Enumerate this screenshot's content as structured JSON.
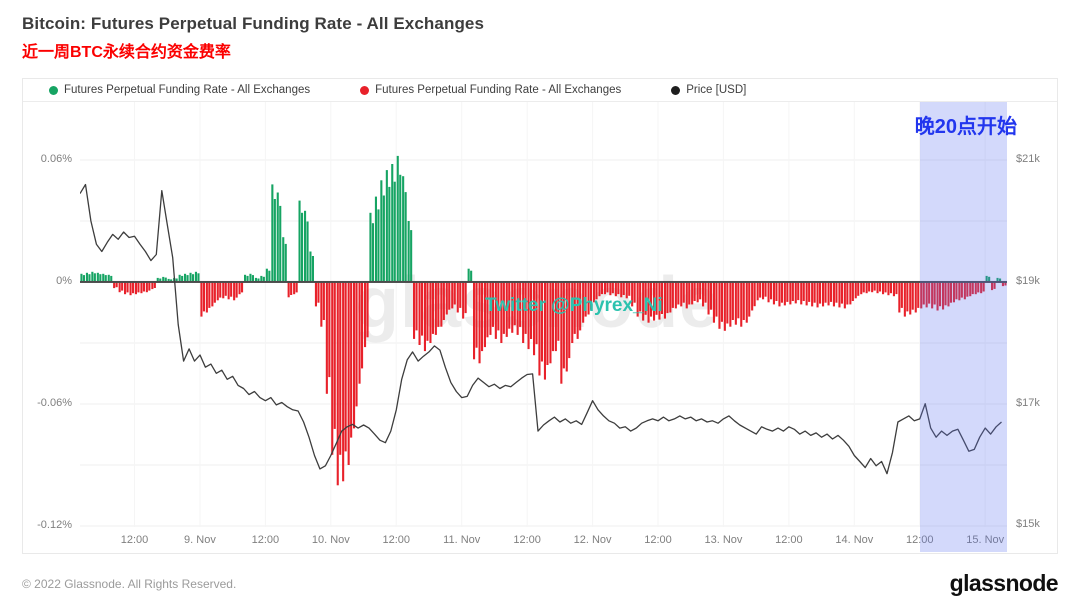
{
  "header": {
    "title": "Bitcoin: Futures Perpetual Funding Rate - All Exchanges",
    "subtitle": "近一周BTC永续合约资金费率"
  },
  "legend": [
    {
      "label": "Futures Perpetual Funding Rate - All Exchanges",
      "color": "#16a463"
    },
    {
      "label": "Futures Perpetual Funding Rate - All Exchanges",
      "color": "#e8212a"
    },
    {
      "label": "Price [USD]",
      "color": "#1e1e1e"
    }
  ],
  "watermarks": {
    "glassnode": "glassnode",
    "twitter": "Twitter @Phyrex_Ni"
  },
  "annotation": {
    "label": "晚20点开始"
  },
  "footer": {
    "copyright": "© 2022 Glassnode. All Rights Reserved.",
    "logo": "glassnode"
  },
  "chart_data": {
    "type": "bar",
    "subtype": "bar+line combo, hourly samples, hours counted from 8. Nov 00:00",
    "title": "Bitcoin: Futures Perpetual Funding Rate - All Exchanges",
    "time_range": [
      2,
      172
    ],
    "time_start_hour": 2,
    "funding_range_pct": [
      -0.1205,
      0.0885
    ],
    "price_range_kusd": [
      14.975,
      21.955
    ],
    "grid_values_pct": [
      0.06,
      0.03,
      0,
      -0.03,
      -0.06,
      -0.09,
      -0.12
    ],
    "y_left_ticks": [
      {
        "value": 0.06,
        "label": "0.06%"
      },
      {
        "value": 0,
        "label": "0%"
      },
      {
        "value": -0.06,
        "label": "-0.06%"
      },
      {
        "value": -0.12,
        "label": "-0.12%"
      }
    ],
    "y_right_ticks": [
      {
        "value": 21,
        "label": "$21k"
      },
      {
        "value": 19,
        "label": "$19k"
      },
      {
        "value": 17,
        "label": "$17k"
      },
      {
        "value": 15,
        "label": "$15k"
      }
    ],
    "x_ticks": [
      {
        "hour": 12,
        "label": "12:00"
      },
      {
        "hour": 24,
        "label": "9. Nov"
      },
      {
        "hour": 36,
        "label": "12:00"
      },
      {
        "hour": 48,
        "label": "10. Nov"
      },
      {
        "hour": 60,
        "label": "12:00"
      },
      {
        "hour": 72,
        "label": "11. Nov"
      },
      {
        "hour": 84,
        "label": "12:00"
      },
      {
        "hour": 96,
        "label": "12. Nov"
      },
      {
        "hour": 108,
        "label": "12:00"
      },
      {
        "hour": 120,
        "label": "13. Nov"
      },
      {
        "hour": 132,
        "label": "12:00"
      },
      {
        "hour": 144,
        "label": "14. Nov"
      },
      {
        "hour": 156,
        "label": "12:00"
      },
      {
        "hour": 168,
        "label": "15. Nov"
      }
    ],
    "highlight": {
      "from_hour": 156,
      "to_hour": 172,
      "label": "晚20点开始"
    },
    "series": [
      {
        "name": "Futures Perpetual Funding Rate - All Exchanges",
        "type": "bar",
        "color_positive": "#16a463",
        "color_negative": "#e8212a",
        "unit": "%"
      },
      {
        "name": "Price [USD]",
        "type": "line",
        "color": "#3d3d3d",
        "unit": "kUSD"
      }
    ],
    "funding_pct": [
      0.004,
      0.0045,
      0.005,
      0.0045,
      0.004,
      0.0035,
      -0.003,
      -0.005,
      -0.006,
      -0.0065,
      -0.006,
      -0.0055,
      -0.005,
      -0.0035,
      0.002,
      0.0025,
      0.0015,
      0.002,
      0.0035,
      0.004,
      0.0045,
      0.005,
      -0.017,
      -0.015,
      -0.012,
      -0.009,
      -0.008,
      -0.0085,
      -0.009,
      -0.006,
      0.0035,
      0.004,
      0.002,
      0.003,
      0.0065,
      0.048,
      0.044,
      0.022,
      -0.0075,
      -0.006,
      0.04,
      0.035,
      0.015,
      -0.012,
      -0.022,
      -0.055,
      -0.085,
      -0.1,
      -0.098,
      -0.09,
      -0.072,
      -0.05,
      -0.032,
      0.034,
      0.042,
      0.05,
      0.055,
      0.058,
      0.062,
      0.052,
      0.03,
      -0.028,
      -0.031,
      -0.034,
      -0.03,
      -0.026,
      -0.022,
      -0.016,
      -0.013,
      -0.015,
      -0.018,
      0.0065,
      -0.038,
      -0.04,
      -0.032,
      -0.026,
      -0.028,
      -0.03,
      -0.027,
      -0.025,
      -0.026,
      -0.03,
      -0.033,
      -0.036,
      -0.046,
      -0.048,
      -0.04,
      -0.034,
      -0.05,
      -0.044,
      -0.03,
      -0.028,
      -0.02,
      -0.016,
      -0.01,
      -0.007,
      -0.006,
      -0.0065,
      -0.007,
      -0.0075,
      -0.008,
      -0.012,
      -0.017,
      -0.019,
      -0.02,
      -0.019,
      -0.0185,
      -0.018,
      -0.015,
      -0.013,
      -0.012,
      -0.013,
      -0.011,
      -0.01,
      -0.012,
      -0.016,
      -0.02,
      -0.023,
      -0.024,
      -0.022,
      -0.021,
      -0.022,
      -0.02,
      -0.014,
      -0.009,
      -0.0085,
      -0.01,
      -0.011,
      -0.012,
      -0.0115,
      -0.011,
      -0.0105,
      -0.011,
      -0.0115,
      -0.012,
      -0.0125,
      -0.012,
      -0.0115,
      -0.012,
      -0.0125,
      -0.013,
      -0.011,
      -0.008,
      -0.006,
      -0.0055,
      -0.005,
      -0.0055,
      -0.006,
      -0.0065,
      -0.007,
      -0.015,
      -0.017,
      -0.016,
      -0.015,
      -0.013,
      -0.0125,
      -0.013,
      -0.014,
      -0.0135,
      -0.012,
      -0.01,
      -0.009,
      -0.0085,
      -0.007,
      -0.006,
      -0.0055,
      0.003,
      -0.004,
      0.002,
      -0.002
    ],
    "price_kusd": [
      20.45,
      20.6,
      20.0,
      19.62,
      19.5,
      19.65,
      19.78,
      19.7,
      19.82,
      19.73,
      19.75,
      19.62,
      19.5,
      19.35,
      19.45,
      20.5,
      19.95,
      19.4,
      18.3,
      17.7,
      17.9,
      17.7,
      17.8,
      17.6,
      17.65,
      17.5,
      17.55,
      17.4,
      17.45,
      17.3,
      17.25,
      17.15,
      17.2,
      17.1,
      17.05,
      17.1,
      16.98,
      17.02,
      16.95,
      16.9,
      16.88,
      16.7,
      16.45,
      16.15,
      15.93,
      15.98,
      16.15,
      16.35,
      16.55,
      16.62,
      16.66,
      16.6,
      16.65,
      16.6,
      16.5,
      16.4,
      16.36,
      16.55,
      16.9,
      17.4,
      17.72,
      17.85,
      17.7,
      17.78,
      17.85,
      17.95,
      17.88,
      17.6,
      17.35,
      17.2,
      17.1,
      17.12,
      17.3,
      17.42,
      17.35,
      17.28,
      17.32,
      17.25,
      17.3,
      17.28,
      17.35,
      17.42,
      17.48,
      17.49,
      16.55,
      16.65,
      16.72,
      16.78,
      16.7,
      16.75,
      16.68,
      16.72,
      16.66,
      16.85,
      17.05,
      16.9,
      16.8,
      16.72,
      16.68,
      16.6,
      16.62,
      16.55,
      16.6,
      16.68,
      16.72,
      16.75,
      16.72,
      16.78,
      16.72,
      16.75,
      16.8,
      16.75,
      16.78,
      16.72,
      16.75,
      16.7,
      16.72,
      16.68,
      16.75,
      16.8,
      16.72,
      16.65,
      16.6,
      16.55,
      16.5,
      16.62,
      16.58,
      16.55,
      16.6,
      16.55,
      16.62,
      16.58,
      16.5,
      16.55,
      16.48,
      16.52,
      16.45,
      16.5,
      16.42,
      16.48,
      16.4,
      16.3,
      16.15,
      16.05,
      15.95,
      16.1,
      15.98,
      16.05,
      15.85,
      16.2,
      16.7,
      16.75,
      16.8,
      16.72,
      16.75,
      17.0,
      16.6,
      16.45,
      16.55,
      16.48,
      16.55,
      16.58,
      16.4,
      16.22,
      16.25,
      16.45,
      16.6,
      16.5,
      16.62,
      16.7
    ]
  }
}
